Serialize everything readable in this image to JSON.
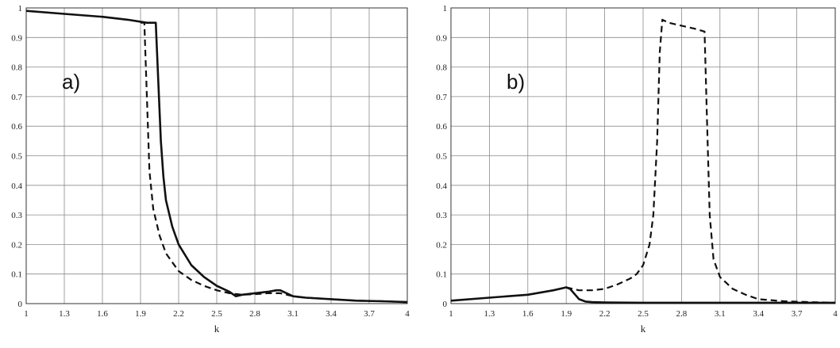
{
  "chart_data": [
    {
      "type": "line",
      "panel_label": "a)",
      "title": "",
      "xlabel": "k",
      "ylabel": "",
      "xlim": [
        1,
        4
      ],
      "ylim": [
        0,
        1
      ],
      "grid": true,
      "xticks": [
        1,
        1.3,
        1.6,
        1.9,
        2.2,
        2.5,
        2.8,
        3.1,
        3.4,
        3.7,
        4
      ],
      "xtick_labels": [
        "1",
        "1.3",
        "1.6",
        "1.9",
        "2.2",
        "2.5",
        "2.8",
        "3.1",
        "3.4",
        "3.7",
        "4"
      ],
      "yticks": [
        0,
        0.1,
        0.2,
        0.3,
        0.4,
        0.5,
        0.6,
        0.7,
        0.8,
        0.9,
        1
      ],
      "ytick_labels": [
        "0",
        "0.1",
        "0.2",
        "0.3",
        "0.4",
        "0.5",
        "0.6",
        "0.7",
        "0.8",
        "0.9",
        "1"
      ],
      "series": [
        {
          "style": "solid",
          "x": [
            1.0,
            1.3,
            1.6,
            1.8,
            1.95,
            2.0,
            2.02,
            2.04,
            2.06,
            2.08,
            2.1,
            2.15,
            2.2,
            2.3,
            2.4,
            2.5,
            2.6,
            2.65,
            2.7,
            2.8,
            2.9,
            2.97,
            3.0,
            3.05,
            3.1,
            3.2,
            3.4,
            3.6,
            3.8,
            4.0
          ],
          "y": [
            0.99,
            0.98,
            0.97,
            0.96,
            0.95,
            0.95,
            0.95,
            0.75,
            0.55,
            0.43,
            0.35,
            0.26,
            0.2,
            0.13,
            0.09,
            0.06,
            0.04,
            0.025,
            0.03,
            0.035,
            0.04,
            0.045,
            0.045,
            0.035,
            0.025,
            0.02,
            0.015,
            0.01,
            0.008,
            0.005
          ]
        },
        {
          "style": "dashed",
          "x": [
            1.9,
            1.93,
            1.95,
            1.97,
            2.0,
            2.05,
            2.1,
            2.2,
            2.3,
            2.4,
            2.5,
            2.6,
            2.7,
            2.8,
            2.9,
            3.0,
            3.1,
            3.2,
            3.4,
            3.6,
            3.8,
            4.0
          ],
          "y": [
            0.95,
            0.95,
            0.7,
            0.45,
            0.32,
            0.23,
            0.17,
            0.11,
            0.08,
            0.06,
            0.045,
            0.035,
            0.03,
            0.032,
            0.035,
            0.035,
            0.025,
            0.02,
            0.015,
            0.01,
            0.008,
            0.005
          ]
        }
      ]
    },
    {
      "type": "line",
      "panel_label": "b)",
      "title": "",
      "xlabel": "k",
      "ylabel": "",
      "xlim": [
        1,
        4
      ],
      "ylim": [
        0,
        1
      ],
      "grid": true,
      "xticks": [
        1,
        1.3,
        1.6,
        1.9,
        2.2,
        2.5,
        2.8,
        3.1,
        3.4,
        3.7,
        4
      ],
      "xtick_labels": [
        "1",
        "1.3",
        "1.6",
        "1.9",
        "2.2",
        "2.5",
        "2.8",
        "3.1",
        "3.4",
        "3.7",
        "4"
      ],
      "yticks": [
        0,
        0.1,
        0.2,
        0.3,
        0.4,
        0.5,
        0.6,
        0.7,
        0.8,
        0.9,
        1
      ],
      "ytick_labels": [
        "0",
        "0.1",
        "0.2",
        "0.3",
        "0.4",
        "0.5",
        "0.6",
        "0.7",
        "0.8",
        "0.9",
        "1"
      ],
      "series": [
        {
          "style": "solid",
          "x": [
            1.0,
            1.3,
            1.6,
            1.8,
            1.9,
            1.93,
            1.97,
            2.0,
            2.05,
            2.1,
            2.2,
            2.5,
            3.0,
            3.5,
            4.0
          ],
          "y": [
            0.01,
            0.02,
            0.03,
            0.045,
            0.055,
            0.05,
            0.03,
            0.015,
            0.007,
            0.005,
            0.004,
            0.003,
            0.003,
            0.003,
            0.003
          ]
        },
        {
          "style": "dashed",
          "x": [
            1.9,
            1.95,
            2.0,
            2.1,
            2.2,
            2.3,
            2.4,
            2.45,
            2.5,
            2.55,
            2.58,
            2.61,
            2.63,
            2.65,
            2.7,
            2.8,
            2.9,
            2.98,
            3.0,
            3.02,
            3.05,
            3.1,
            3.2,
            3.3,
            3.4,
            3.6,
            3.8,
            4.0
          ],
          "y": [
            0.055,
            0.05,
            0.045,
            0.045,
            0.05,
            0.065,
            0.085,
            0.1,
            0.13,
            0.2,
            0.3,
            0.55,
            0.85,
            0.96,
            0.95,
            0.94,
            0.93,
            0.92,
            0.6,
            0.3,
            0.15,
            0.09,
            0.05,
            0.03,
            0.015,
            0.008,
            0.005,
            0.003
          ]
        }
      ]
    }
  ]
}
